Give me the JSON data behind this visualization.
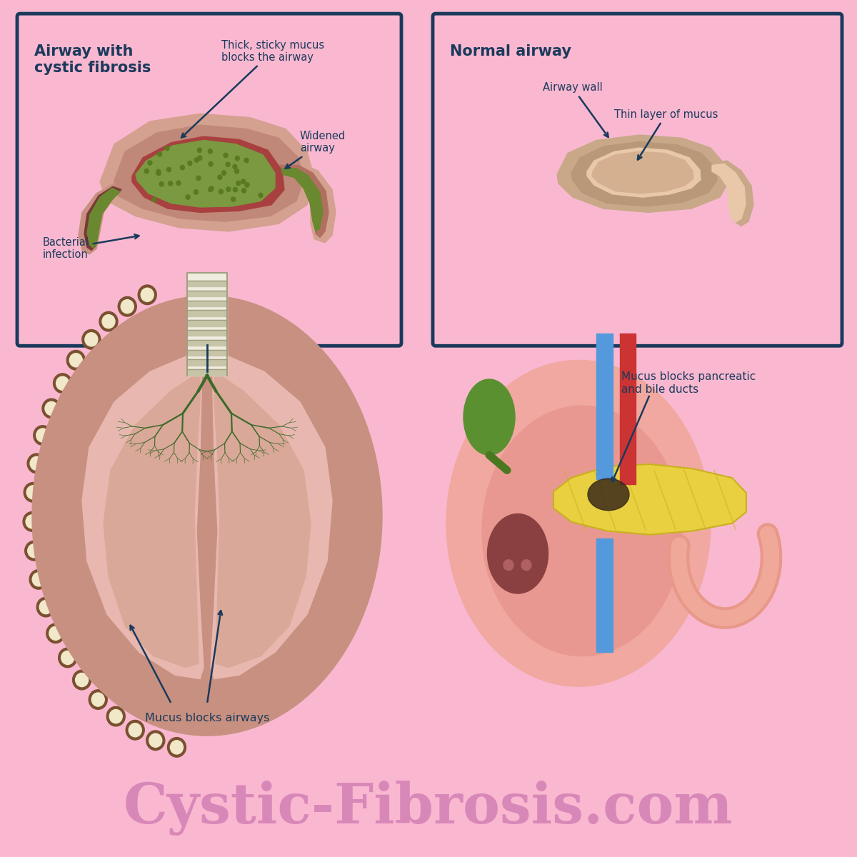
{
  "bg_color": "#f9b8d0",
  "footer_bg": "#1a1a1a",
  "footer_text": "Cystic-Fibrosis.com",
  "footer_text_color": "#d888b8",
  "box_border_color": "#1a3a5c",
  "label_color": "#1a3a5c",
  "cf_title": "Airway with\ncystic fibrosis",
  "normal_title": "Normal airway",
  "bottom_left_label": "Mucus blocks airways",
  "bottom_right_label": "Mucus blocks pancreatic\nand bile ducts",
  "lung_color": "#e8b8b0",
  "lung_inner": "#d4a898",
  "tree_color": "#3a6a2a",
  "trachea_color": "#f0ece0",
  "rib_dot_color": "#c8a878",
  "rib_dark": "#7a5030"
}
